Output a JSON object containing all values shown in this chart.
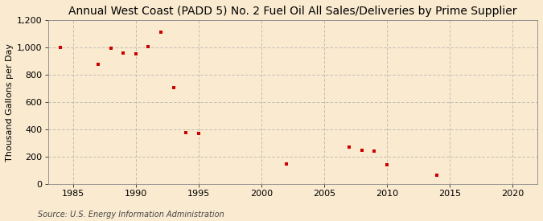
{
  "title": "Annual West Coast (PADD 5) No. 2 Fuel Oil All Sales/Deliveries by Prime Supplier",
  "ylabel": "Thousand Gallons per Day",
  "source": "Source: U.S. Energy Information Administration",
  "background_color": "#faebd0",
  "plot_background_color": "#faebd0",
  "marker_color": "#cc0000",
  "x": [
    1984,
    1987,
    1988,
    1989,
    1990,
    1991,
    1992,
    1993,
    1994,
    1995,
    2002,
    2007,
    2008,
    2009,
    2010,
    2014
  ],
  "y": [
    998,
    878,
    995,
    958,
    952,
    1007,
    1110,
    706,
    378,
    368,
    150,
    270,
    247,
    242,
    143,
    65
  ],
  "xlim": [
    1983,
    2022
  ],
  "ylim": [
    0,
    1200
  ],
  "xticks": [
    1985,
    1990,
    1995,
    2000,
    2005,
    2010,
    2015,
    2020
  ],
  "yticks": [
    0,
    200,
    400,
    600,
    800,
    1000,
    1200
  ],
  "grid_color": "#aaaaaa",
  "title_fontsize": 10,
  "axis_fontsize": 8,
  "tick_fontsize": 8,
  "source_fontsize": 7
}
